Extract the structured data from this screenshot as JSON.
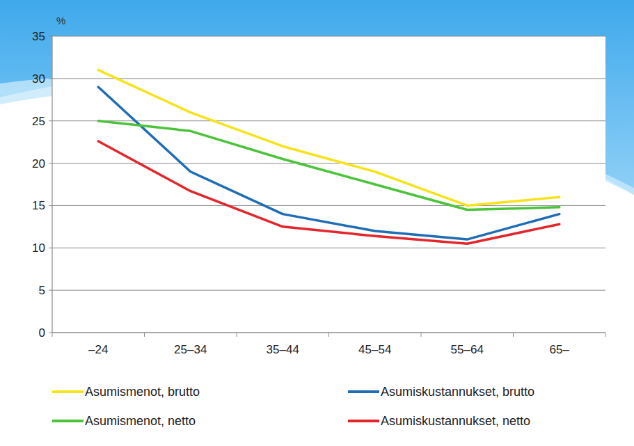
{
  "chart_data": {
    "type": "line",
    "y_label": "%",
    "categories": [
      "–24",
      "25–34",
      "35–44",
      "45–54",
      "55–64",
      "65–"
    ],
    "series": [
      {
        "name": "Asumismenot, brutto",
        "color": "#f7e31a",
        "values": [
          31,
          26,
          22,
          19,
          15,
          16
        ]
      },
      {
        "name": "Asumiskustannukset, brutto",
        "color": "#1f6db5",
        "values": [
          29,
          19,
          14,
          12,
          11,
          14
        ]
      },
      {
        "name": "Asumismenot, netto",
        "color": "#4cc33a",
        "values": [
          25,
          23.8,
          20.5,
          17.5,
          14.5,
          14.8
        ]
      },
      {
        "name": "Asumiskustannukset, netto",
        "color": "#e3262b",
        "values": [
          22.6,
          16.7,
          12.5,
          11.4,
          10.5,
          12.8
        ]
      }
    ],
    "ylim": [
      0,
      35
    ],
    "yticks": [
      0,
      5,
      10,
      15,
      20,
      25,
      30,
      35
    ],
    "grid": true,
    "legend": "bottom"
  }
}
